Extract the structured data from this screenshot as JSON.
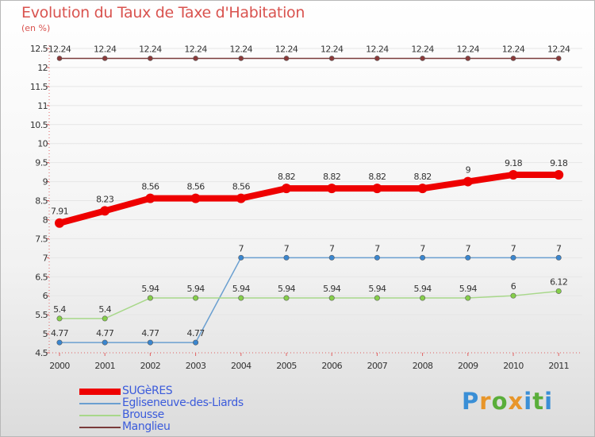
{
  "title": "Evolution du Taux de Taxe d'Habitation",
  "subtitle": "(en %)",
  "logo": {
    "text": "Proxiti",
    "letters": [
      "P",
      "r",
      "o",
      "x",
      "i",
      "t",
      "i"
    ],
    "colors": [
      "#3a8fd6",
      "#e8962a",
      "#5aae3a",
      "#e8962a",
      "#3a8fd6",
      "#5aae3a",
      "#3a8fd6"
    ]
  },
  "legend": [
    {
      "name": "SUGèRES",
      "color": "#ee0000"
    },
    {
      "name": "Egliseneuve-des-Liards",
      "color": "#6a9fd0"
    },
    {
      "name": "Brousse",
      "color": "#a8d88a"
    },
    {
      "name": "Manglieu",
      "color": "#7a3b3b"
    }
  ],
  "chart_data": {
    "type": "line",
    "title": "Evolution du Taux de Taxe d'Habitation",
    "ylabel": "(en %)",
    "xlabel": "",
    "x": [
      "2000",
      "2001",
      "2002",
      "2003",
      "2004",
      "2005",
      "2006",
      "2007",
      "2008",
      "2009",
      "2010",
      "2011"
    ],
    "ylim": [
      4.5,
      12.5
    ],
    "yticks": [
      "4.5",
      "5",
      "5.5",
      "6",
      "6.5",
      "7",
      "7.5",
      "8",
      "8.5",
      "9",
      "9.5",
      "10",
      "10.5",
      "11",
      "11.5",
      "12",
      "12.5"
    ],
    "series": [
      {
        "name": "Manglieu",
        "color": "#7a3b3b",
        "pointColor": "#8b3a3a",
        "width": 1.5,
        "radius": 3,
        "values": [
          12.24,
          12.24,
          12.24,
          12.24,
          12.24,
          12.24,
          12.24,
          12.24,
          12.24,
          12.24,
          12.24,
          12.24
        ],
        "labels": [
          "12.24",
          "12.24",
          "12.24",
          "12.24",
          "12.24",
          "12.24",
          "12.24",
          "12.24",
          "12.24",
          "12.24",
          "12.24",
          "12.24"
        ]
      },
      {
        "name": "SUGèRES",
        "color": "#ee0000",
        "pointColor": "#ee0000",
        "width": 8,
        "radius": 6,
        "values": [
          7.91,
          8.23,
          8.56,
          8.56,
          8.56,
          8.82,
          8.82,
          8.82,
          8.82,
          9,
          9.18,
          9.18
        ],
        "labels": [
          "7.91",
          "8.23",
          "8.56",
          "8.56",
          "8.56",
          "8.82",
          "8.82",
          "8.82",
          "8.82",
          "9",
          "9.18",
          "9.18"
        ]
      },
      {
        "name": "Egliseneuve-des-Liards",
        "color": "#6a9fd0",
        "pointColor": "#3a86cf",
        "width": 1.5,
        "radius": 3.2,
        "values": [
          4.77,
          4.77,
          4.77,
          4.77,
          7,
          7,
          7,
          7,
          7,
          7,
          7,
          7
        ],
        "labels": [
          "4.77",
          "4.77",
          "4.77",
          "4.77",
          "7",
          "7",
          "7",
          "7",
          "7",
          "7",
          "7",
          "7"
        ]
      },
      {
        "name": "Brousse",
        "color": "#a8d88a",
        "pointColor": "#86cf4a",
        "width": 1.5,
        "radius": 3.2,
        "values": [
          5.4,
          5.4,
          5.94,
          5.94,
          5.94,
          5.94,
          5.94,
          5.94,
          5.94,
          5.94,
          6,
          6.12
        ],
        "labels": [
          "5.4",
          "5.4",
          "5.94",
          "5.94",
          "5.94",
          "5.94",
          "5.94",
          "5.94",
          "5.94",
          "5.94",
          "6",
          "6.12"
        ]
      }
    ]
  }
}
